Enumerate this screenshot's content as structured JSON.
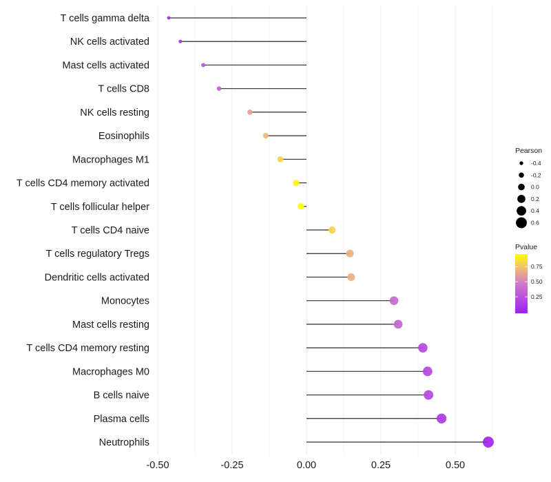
{
  "chart_data": {
    "type": "lollipop",
    "title": "",
    "xlabel": "",
    "ylabel": "",
    "xlim": [
      -0.535,
      0.64
    ],
    "x_ticks": [
      -0.5,
      -0.25,
      0.0,
      0.25,
      0.5
    ],
    "x_tick_labels": [
      "-0.50",
      "-0.25",
      "0.00",
      "0.25",
      "0.50"
    ],
    "grid": true,
    "categories": [
      "T cells gamma delta",
      "NK cells activated",
      "Mast cells activated",
      "T cells CD8",
      "NK cells resting",
      "Eosinophils",
      "Macrophages M1",
      "T cells CD4 memory activated",
      "T cells follicular helper",
      "T cells CD4 naive",
      "T cells regulatory  Tregs ",
      "Dendritic cells activated",
      "Monocytes",
      "Mast cells resting",
      "T cells CD4 memory resting",
      "Macrophages M0",
      "B cells naive",
      "Plasma cells",
      "Neutrophils"
    ],
    "values": [
      -0.463,
      -0.424,
      -0.347,
      -0.294,
      -0.19,
      -0.137,
      -0.088,
      -0.035,
      -0.019,
      0.086,
      0.146,
      0.15,
      0.294,
      0.308,
      0.391,
      0.407,
      0.41,
      0.454,
      0.611
    ],
    "pvalues": [
      0.05,
      0.1,
      0.3,
      0.35,
      0.65,
      0.75,
      0.85,
      0.97,
      0.99,
      0.85,
      0.72,
      0.72,
      0.4,
      0.38,
      0.22,
      0.22,
      0.22,
      0.15,
      0.02
    ],
    "size_legend": {
      "title": "Pearson",
      "breaks": [
        -0.4,
        -0.2,
        0.0,
        0.2,
        0.4,
        0.6
      ],
      "labels": [
        "-0.4",
        "-0.2",
        "0.0",
        "0.2",
        "0.4",
        "0.6"
      ]
    },
    "color_legend": {
      "title": "Pvalue",
      "range": [
        0.0,
        1.0
      ],
      "breaks": [
        0.25,
        0.5,
        0.75
      ],
      "labels": [
        "0.25",
        "0.50",
        "0.75"
      ],
      "low_color": "#a020f0",
      "mid_color": "#e08ab0",
      "high_color": "#ffff00"
    },
    "legend_position": "right"
  }
}
